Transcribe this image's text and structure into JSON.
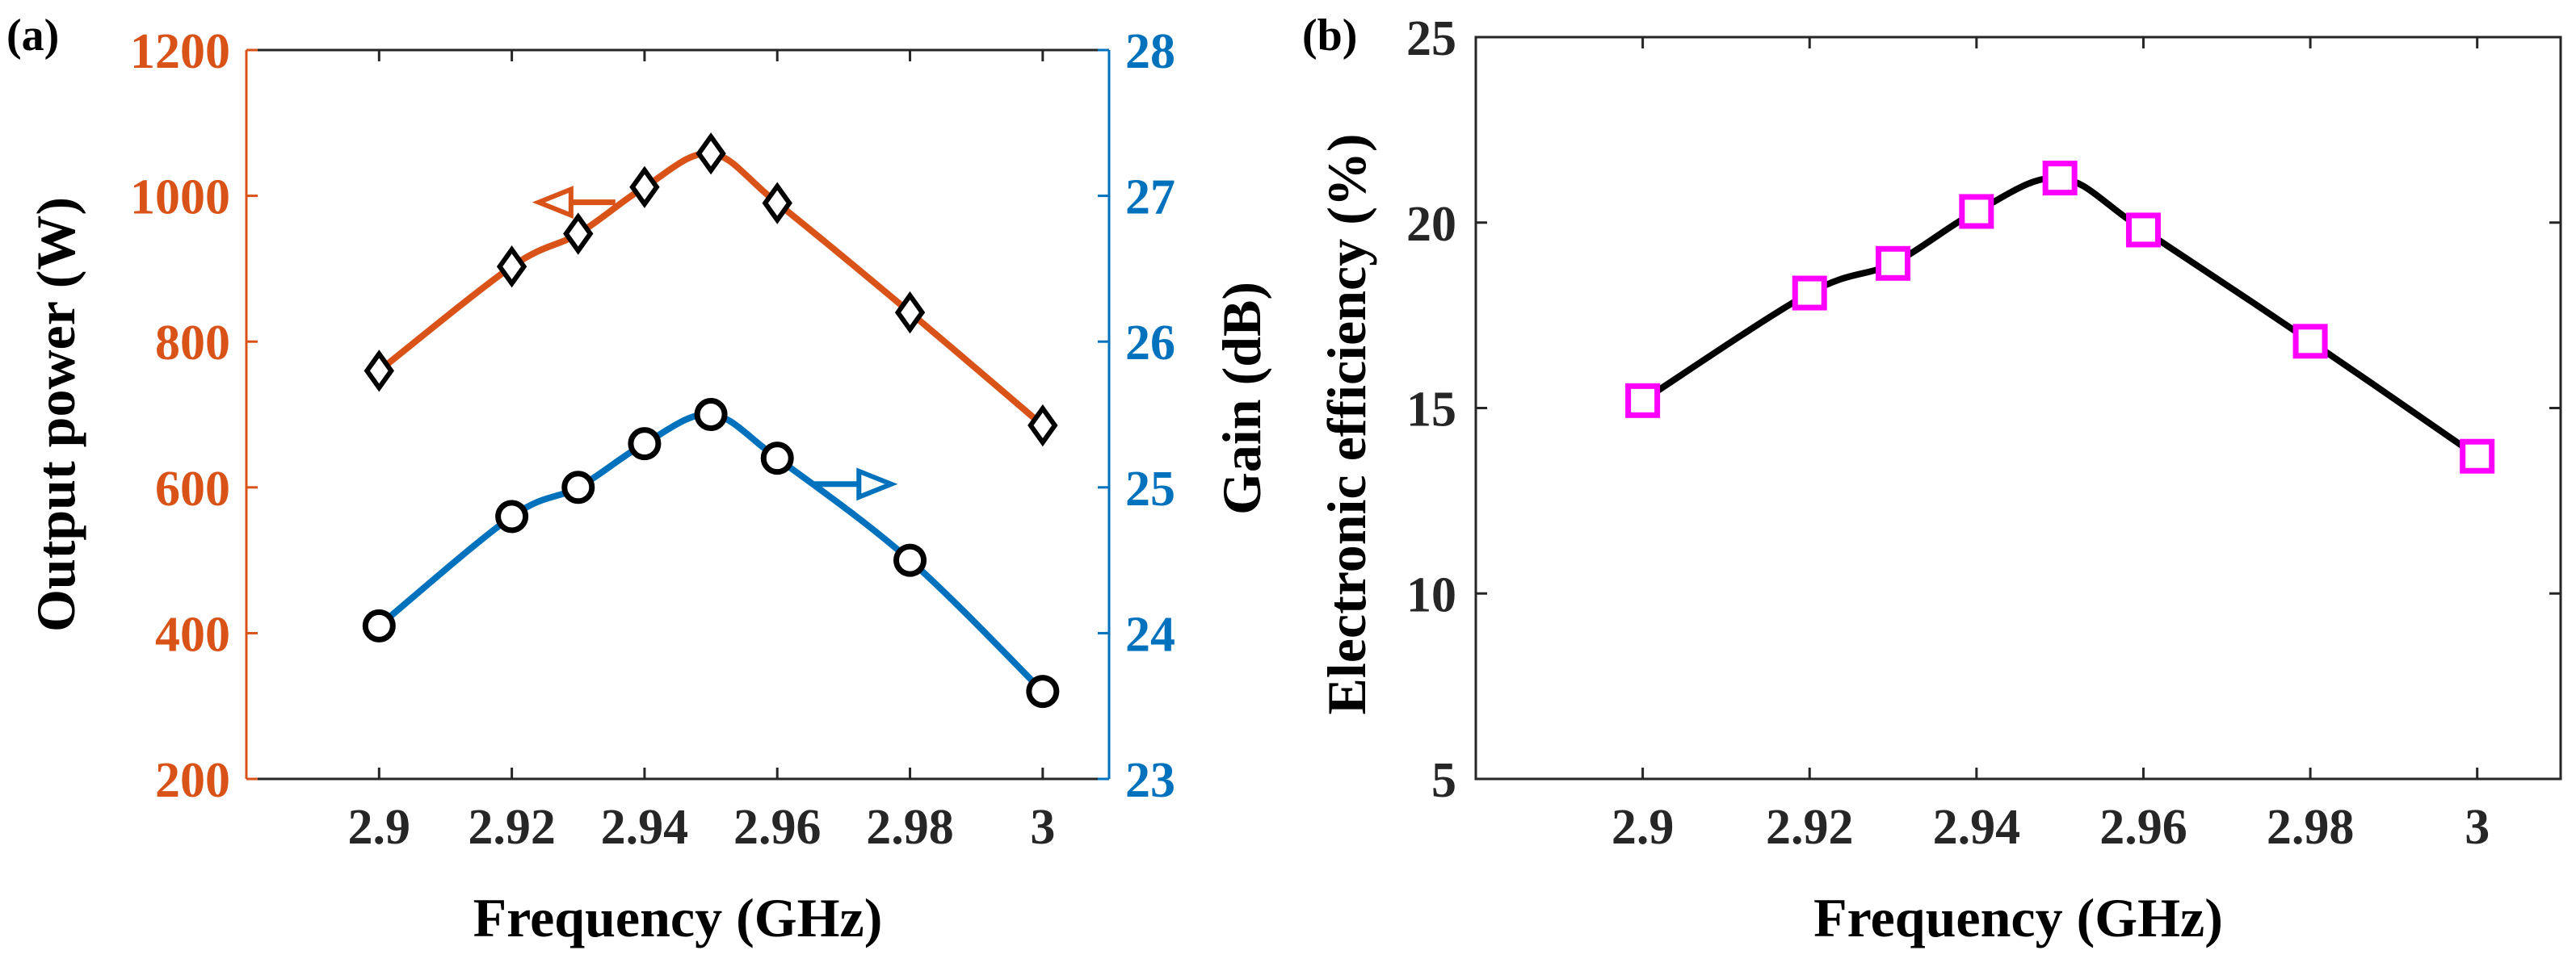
{
  "chart_data": [
    {
      "panel": "(a)",
      "type": "line",
      "xlabel": "Frequency (GHz)",
      "ylabel_left": "Output power (W)",
      "ylabel_right": "Gain (dB)",
      "x": [
        2.9,
        2.92,
        2.93,
        2.94,
        2.95,
        2.96,
        2.98,
        3.0
      ],
      "xlim": [
        2.88,
        3.01
      ],
      "xticks": [
        2.9,
        2.92,
        2.94,
        2.96,
        2.98,
        3.0
      ],
      "xtick_labels": [
        "2.9",
        "2.92",
        "2.94",
        "2.96",
        "2.98",
        "3"
      ],
      "ylim_left": [
        200,
        1200
      ],
      "yticks_left": [
        200,
        400,
        600,
        800,
        1000,
        1200
      ],
      "ytick_labels_left": [
        "200",
        "400",
        "600",
        "800",
        "1000",
        "1200"
      ],
      "ylim_right": [
        23,
        28
      ],
      "yticks_right": [
        23,
        24,
        25,
        26,
        27,
        28
      ],
      "ytick_labels_right": [
        "23",
        "24",
        "25",
        "26",
        "27",
        "28"
      ],
      "series": [
        {
          "name": "Output power",
          "axis": "left",
          "marker": "diamond",
          "values": [
            760,
            903,
            948,
            1012,
            1058,
            990,
            840,
            685
          ],
          "curve_color": "#D95319",
          "marker_color": "#000000"
        },
        {
          "name": "Gain",
          "axis": "right",
          "marker": "circle",
          "values": [
            24.05,
            24.8,
            25.0,
            25.3,
            25.5,
            25.2,
            24.5,
            23.6
          ],
          "curve_color": "#0072BD",
          "marker_color": "#000000"
        }
      ],
      "annotations": [
        {
          "type": "arrow",
          "direction": "left",
          "target_series": "Output power",
          "color": "#D95319",
          "at_x": 2.935,
          "at_y": 1000
        },
        {
          "type": "arrow",
          "direction": "right",
          "target_series": "Gain",
          "color": "#0072BD",
          "at_x": 2.965,
          "at_y": 25.05
        }
      ],
      "grid": false
    },
    {
      "panel": "(b)",
      "type": "line",
      "xlabel": "Frequency (GHz)",
      "ylabel": "Electronic efficiency (%)",
      "x": [
        2.9,
        2.92,
        2.93,
        2.94,
        2.95,
        2.96,
        2.98,
        3.0
      ],
      "xlim": [
        2.88,
        3.01
      ],
      "xticks": [
        2.9,
        2.92,
        2.94,
        2.96,
        2.98,
        3.0
      ],
      "xtick_labels": [
        "2.9",
        "2.92",
        "2.94",
        "2.96",
        "2.98",
        "3"
      ],
      "ylim": [
        5,
        25
      ],
      "yticks": [
        5,
        10,
        15,
        20,
        25
      ],
      "ytick_labels": [
        "5",
        "10",
        "15",
        "20",
        "25"
      ],
      "series": [
        {
          "name": "Electronic efficiency",
          "marker": "square",
          "values": [
            15.2,
            18.1,
            18.9,
            20.3,
            21.2,
            19.8,
            16.8,
            13.7
          ],
          "curve_color": "#000000",
          "marker_color": "#FF00FF"
        }
      ],
      "grid": false
    }
  ]
}
